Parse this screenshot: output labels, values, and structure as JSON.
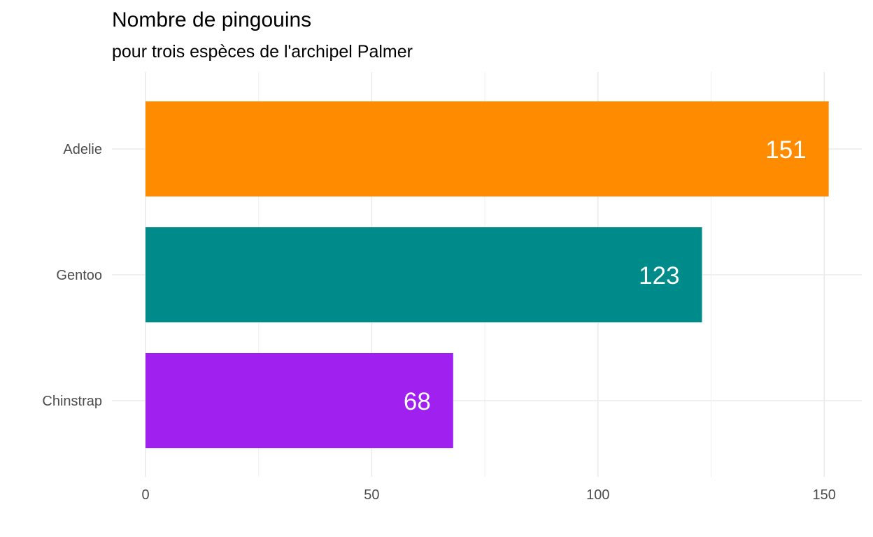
{
  "chart_data": {
    "type": "bar",
    "orientation": "horizontal",
    "title": "Nombre de pingouins",
    "subtitle": "pour trois espèces de l'archipel Palmer",
    "categories": [
      "Adelie",
      "Gentoo",
      "Chinstrap"
    ],
    "values": [
      151,
      123,
      68
    ],
    "data_labels": [
      "151",
      "123",
      "68"
    ],
    "colors": [
      "#ff8c00",
      "#008b8b",
      "#a020f0"
    ],
    "xlim": [
      0,
      155
    ],
    "x_ticks": [
      0,
      50,
      100,
      150
    ],
    "x_tick_labels": [
      "0",
      "50",
      "100",
      "150"
    ],
    "grid": true,
    "legend": "none"
  }
}
